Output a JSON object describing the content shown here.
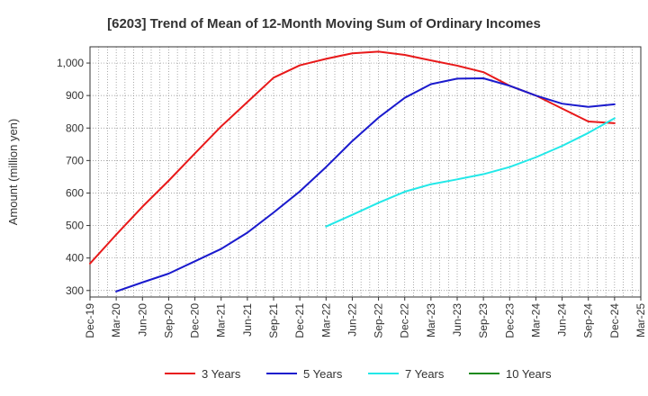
{
  "chart_data": {
    "type": "line",
    "title": "[6203]  Trend of Mean of 12-Month Moving Sum of Ordinary Incomes",
    "ylabel": "Amount (million yen)",
    "xlabel": "",
    "ylim": [
      280,
      1050
    ],
    "yticks": [
      300,
      400,
      500,
      600,
      700,
      800,
      900,
      1000
    ],
    "ytick_labels": [
      "300",
      "400",
      "500",
      "600",
      "700",
      "800",
      "900",
      "1,000"
    ],
    "xticks": [
      "2019-12",
      "2020-03",
      "2020-06",
      "2020-09",
      "2020-12",
      "2021-03",
      "2021-06",
      "2021-09",
      "2021-12",
      "2022-03",
      "2022-06",
      "2022-09",
      "2022-12",
      "2023-03",
      "2023-06",
      "2023-09",
      "2023-12",
      "2024-03",
      "2024-06",
      "2024-09",
      "2024-12",
      "2025-03"
    ],
    "xtick_labels": [
      "Dec-19",
      "Mar-20",
      "Jun-20",
      "Sep-20",
      "Dec-20",
      "Mar-21",
      "Jun-21",
      "Sep-21",
      "Dec-21",
      "Mar-22",
      "Jun-22",
      "Sep-22",
      "Dec-22",
      "Mar-23",
      "Jun-23",
      "Sep-23",
      "Dec-23",
      "Mar-24",
      "Jun-24",
      "Sep-24",
      "Dec-24",
      "Mar-25"
    ],
    "grid": true,
    "legend_position": "bottom",
    "series": [
      {
        "name": "3 Years",
        "color": "#e8191a",
        "points": [
          [
            "2019-12",
            383
          ],
          [
            "2020-03",
            472
          ],
          [
            "2020-06",
            558
          ],
          [
            "2020-09",
            638
          ],
          [
            "2020-12",
            722
          ],
          [
            "2021-03",
            805
          ],
          [
            "2021-06",
            880
          ],
          [
            "2021-09",
            955
          ],
          [
            "2021-12",
            993
          ],
          [
            "2022-03",
            1013
          ],
          [
            "2022-06",
            1030
          ],
          [
            "2022-09",
            1035
          ],
          [
            "2022-12",
            1025
          ],
          [
            "2023-03",
            1008
          ],
          [
            "2023-06",
            992
          ],
          [
            "2023-09",
            972
          ],
          [
            "2023-12",
            930
          ],
          [
            "2024-03",
            900
          ],
          [
            "2024-06",
            860
          ],
          [
            "2024-09",
            820
          ],
          [
            "2024-12",
            815
          ]
        ]
      },
      {
        "name": "5 Years",
        "color": "#1a1acd",
        "points": [
          [
            "2020-03",
            297
          ],
          [
            "2020-06",
            325
          ],
          [
            "2020-09",
            352
          ],
          [
            "2020-12",
            390
          ],
          [
            "2021-03",
            428
          ],
          [
            "2021-06",
            478
          ],
          [
            "2021-09",
            540
          ],
          [
            "2021-12",
            605
          ],
          [
            "2022-03",
            680
          ],
          [
            "2022-06",
            760
          ],
          [
            "2022-09",
            832
          ],
          [
            "2022-12",
            893
          ],
          [
            "2023-03",
            935
          ],
          [
            "2023-06",
            952
          ],
          [
            "2023-09",
            953
          ],
          [
            "2023-12",
            930
          ],
          [
            "2024-03",
            900
          ],
          [
            "2024-06",
            875
          ],
          [
            "2024-09",
            865
          ],
          [
            "2024-12",
            873
          ]
        ]
      },
      {
        "name": "7 Years",
        "color": "#22e8e8",
        "points": [
          [
            "2022-03",
            497
          ],
          [
            "2022-06",
            533
          ],
          [
            "2022-09",
            570
          ],
          [
            "2022-12",
            604
          ],
          [
            "2023-03",
            627
          ],
          [
            "2023-06",
            642
          ],
          [
            "2023-09",
            658
          ],
          [
            "2023-12",
            680
          ],
          [
            "2024-03",
            710
          ],
          [
            "2024-06",
            745
          ],
          [
            "2024-09",
            785
          ],
          [
            "2024-12",
            830
          ]
        ]
      },
      {
        "name": "10 Years",
        "color": "#1a8a1a",
        "points": []
      }
    ]
  }
}
